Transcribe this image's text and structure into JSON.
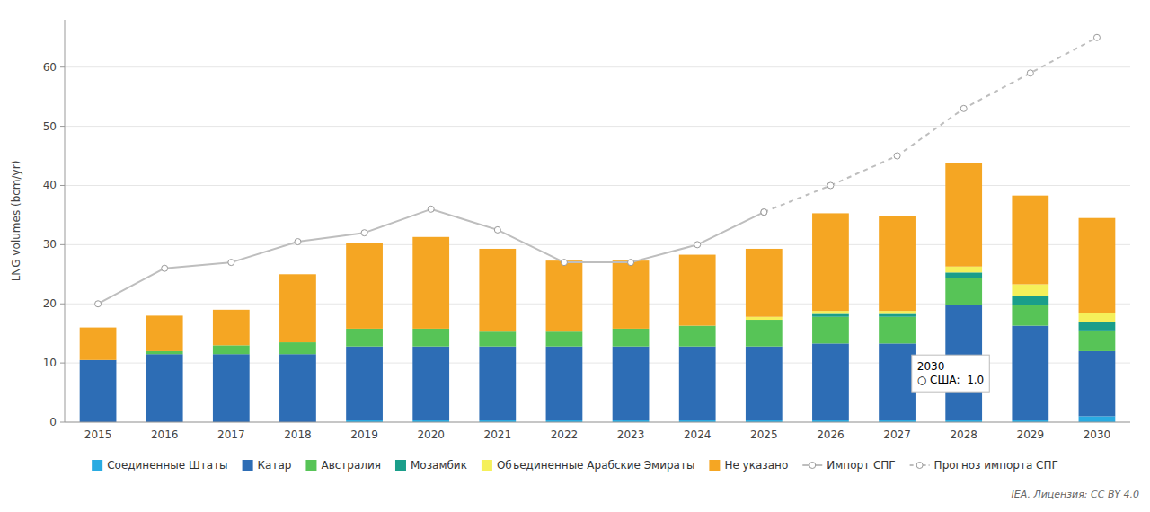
{
  "chart_data": {
    "type": "bar",
    "stacked": true,
    "categories": [
      "2015",
      "2016",
      "2017",
      "2018",
      "2019",
      "2020",
      "2021",
      "2022",
      "2023",
      "2024",
      "2025",
      "2026",
      "2027",
      "2028",
      "2029",
      "2030"
    ],
    "series": [
      {
        "name": "Соединенные Штаты",
        "color": "#29ABE2",
        "values": [
          0.0,
          0.0,
          0.0,
          0.0,
          0.3,
          0.3,
          0.3,
          0.3,
          0.3,
          0.3,
          0.3,
          0.3,
          0.3,
          0.3,
          0.3,
          1.0
        ]
      },
      {
        "name": "Катар",
        "color": "#2D6DB5",
        "values": [
          10.5,
          11.5,
          11.5,
          11.5,
          12.5,
          12.5,
          12.5,
          12.5,
          12.5,
          12.5,
          12.5,
          13.0,
          13.0,
          19.5,
          16.0,
          11.0
        ]
      },
      {
        "name": "Австралия",
        "color": "#57C457",
        "values": [
          0.0,
          0.5,
          1.5,
          2.0,
          3.0,
          3.0,
          2.5,
          2.5,
          3.0,
          3.5,
          4.5,
          4.5,
          4.5,
          4.5,
          3.5,
          3.5
        ]
      },
      {
        "name": "Мозамбик",
        "color": "#1A9E8A",
        "values": [
          0.0,
          0.0,
          0.0,
          0.0,
          0.0,
          0.0,
          0.0,
          0.0,
          0.0,
          0.0,
          0.0,
          0.5,
          0.5,
          1.0,
          1.5,
          1.5
        ]
      },
      {
        "name": "Объединенные Арабские Эмираты",
        "color": "#F5F05A",
        "values": [
          0.0,
          0.0,
          0.0,
          0.0,
          0.0,
          0.0,
          0.0,
          0.0,
          0.0,
          0.0,
          0.5,
          0.5,
          0.5,
          1.0,
          2.0,
          1.5
        ]
      },
      {
        "name": "Не указано",
        "color": "#F5A623",
        "values": [
          5.5,
          6.0,
          6.0,
          11.5,
          14.5,
          15.5,
          14.0,
          12.0,
          11.5,
          12.0,
          11.5,
          16.5,
          16.0,
          17.5,
          15.0,
          16.0
        ]
      },
      {
        "name": "Импорт СПГ",
        "type": "line",
        "color": "#BEBEBE",
        "marker": "circle",
        "line_style": "solid",
        "values": [
          20,
          26,
          27,
          30.5,
          32,
          36,
          32.5,
          27,
          27,
          30,
          35.5,
          null,
          null,
          null,
          null,
          null
        ]
      },
      {
        "name": "Прогноз импорта СПГ",
        "type": "line",
        "color": "#BEBEBE",
        "marker": "circle",
        "line_style": "dashed",
        "values": [
          null,
          null,
          null,
          null,
          null,
          null,
          null,
          null,
          null,
          null,
          35.5,
          40,
          45,
          53,
          59,
          65
        ]
      }
    ],
    "y_label": "LNG volumes (bcm/yr)",
    "ylim": [
      0,
      68
    ],
    "yticks": [
      0,
      10,
      20,
      30,
      40,
      50,
      60
    ],
    "grid": true,
    "legend": "bottom",
    "annotations": [
      {
        "text": "2030\n○ США:  1.0"
      }
    ],
    "credit": "IEA. Лицензия: CC BY 4.0"
  }
}
